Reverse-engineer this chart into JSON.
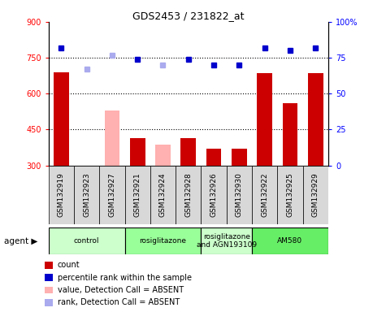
{
  "title": "GDS2453 / 231822_at",
  "samples": [
    "GSM132919",
    "GSM132923",
    "GSM132927",
    "GSM132921",
    "GSM132924",
    "GSM132928",
    "GSM132926",
    "GSM132930",
    "GSM132922",
    "GSM132925",
    "GSM132929"
  ],
  "bar_values": [
    690,
    null,
    null,
    415,
    null,
    415,
    370,
    370,
    685,
    560,
    685
  ],
  "bar_absent_values": [
    null,
    null,
    530,
    null,
    385,
    null,
    null,
    null,
    null,
    null,
    null
  ],
  "bar_color_present": "#cc0000",
  "bar_color_absent": "#ffb0b0",
  "rank_values": [
    82,
    null,
    null,
    74,
    null,
    74,
    70,
    70,
    82,
    80,
    82
  ],
  "rank_absent_values": [
    null,
    67,
    77,
    null,
    70,
    null,
    null,
    null,
    null,
    null,
    null
  ],
  "rank_color_present": "#0000cc",
  "rank_color_absent": "#aaaaee",
  "ylim_left": [
    300,
    900
  ],
  "ylim_right": [
    0,
    100
  ],
  "yticks_left": [
    300,
    450,
    600,
    750,
    900
  ],
  "yticks_right": [
    0,
    25,
    50,
    75,
    100
  ],
  "ytick_labels_left": [
    "300",
    "450",
    "600",
    "750",
    "900"
  ],
  "ytick_labels_right": [
    "0",
    "25",
    "50",
    "75",
    "100%"
  ],
  "hlines": [
    450,
    600,
    750
  ],
  "agent_groups": [
    {
      "label": "control",
      "start": 0,
      "end": 3,
      "color": "#ccffcc"
    },
    {
      "label": "rosiglitazone",
      "start": 3,
      "end": 6,
      "color": "#99ff99"
    },
    {
      "label": "rosiglitazone\nand AGN193109",
      "start": 6,
      "end": 8,
      "color": "#ccffcc"
    },
    {
      "label": "AM580",
      "start": 8,
      "end": 11,
      "color": "#66ee66"
    }
  ],
  "legend_items": [
    {
      "label": "count",
      "color": "#cc0000"
    },
    {
      "label": "percentile rank within the sample",
      "color": "#0000cc"
    },
    {
      "label": "value, Detection Call = ABSENT",
      "color": "#ffb0b0"
    },
    {
      "label": "rank, Detection Call = ABSENT",
      "color": "#aaaaee"
    }
  ],
  "bar_width": 0.6,
  "cell_color": "#d8d8d8",
  "plot_bg": "#ffffff"
}
